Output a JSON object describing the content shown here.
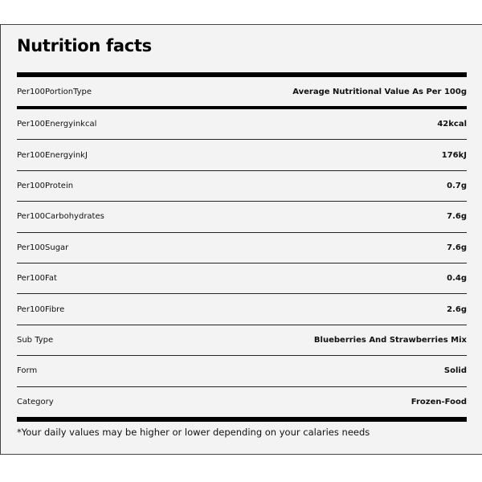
{
  "title": "Nutrition facts",
  "header_row": {
    "label": "Per100PortionType",
    "value": "Average Nutritional Value As Per 100g"
  },
  "rows": [
    {
      "label": "Per100Energyinkcal",
      "value": "42kcal"
    },
    {
      "label": "Per100EnergyinkJ",
      "value": "176kJ"
    },
    {
      "label": "Per100Protein",
      "value": "0.7g"
    },
    {
      "label": "Per100Carbohydrates",
      "value": "7.6g"
    },
    {
      "label": "Per100Sugar",
      "value": "7.6g"
    },
    {
      "label": "Per100Fat",
      "value": "0.4g"
    },
    {
      "label": "Per100Fibre",
      "value": "2.6g"
    },
    {
      "label": "Sub Type",
      "value": "Blueberries And Strawberries Mix"
    },
    {
      "label": "Form",
      "value": "Solid"
    },
    {
      "label": "Category",
      "value": "Frozen-Food"
    }
  ],
  "footnote": "*Your daily values may be higher or lower depending on your calaries needs"
}
